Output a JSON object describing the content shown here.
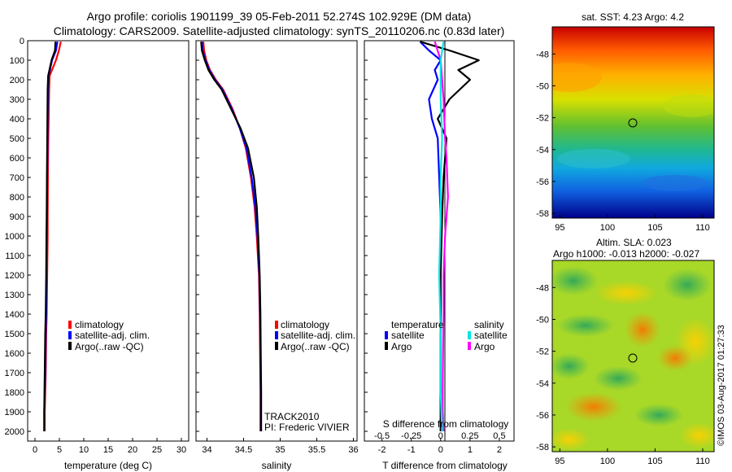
{
  "title": {
    "line1": "Argo profile: coriolis 1901199_39 05-Feb-2011 52.274S 102.929E (DM data)",
    "line2": "Climatology: CARS2009. Satellite-adjusted climatology: synTS_20110206.nc (0.83d later)"
  },
  "colors": {
    "climatology": "#ff0000",
    "satellite": "#0000ff",
    "argo": "#000000",
    "argo_salinity": "#ff00ff",
    "satellite_salinity": "#00e5e5"
  },
  "legend_profile": [
    "climatology",
    "satellite-adj. clim.",
    "Argo(..raw -QC)"
  ],
  "legend_diff": {
    "col1_title": "temperature",
    "col2_title": "salinity",
    "satellite": "satellite",
    "argo": "Argo"
  },
  "track_text": {
    "line1": "TRACK2010",
    "line2": "PI: Frederic VIVIER"
  },
  "map_sst": {
    "title": "sat. SST: 4.23 Argo: 4.2"
  },
  "map_sla": {
    "title1": "Altim. SLA: 0.023",
    "title2": "Argo h1000: -0.013 h2000: -0.027"
  },
  "watermark": "©IMOS 03-Aug-2017 01:27:33",
  "chart_data": [
    {
      "type": "line",
      "xlabel": "temperature (deg C)",
      "ylabel": "",
      "xlim": [
        -1.5,
        31.5
      ],
      "ylim": [
        2050,
        0
      ],
      "xticks": [
        0,
        5,
        10,
        15,
        20,
        25,
        30
      ],
      "yticks": [
        0,
        100,
        200,
        300,
        400,
        500,
        600,
        700,
        800,
        900,
        1000,
        1100,
        1200,
        1300,
        1400,
        1500,
        1600,
        1700,
        1800,
        1900,
        2000
      ],
      "series": [
        {
          "name": "climatology",
          "color": "#ff0000",
          "x": [
            5.3,
            4.9,
            4.3,
            3.0,
            2.9,
            2.8,
            2.7,
            2.65,
            2.6,
            2.6,
            2.5,
            2.4,
            2.3,
            2.2,
            2.1,
            2.0,
            2.0
          ],
          "y": [
            5,
            50,
            100,
            180,
            250,
            400,
            550,
            700,
            900,
            1000,
            1200,
            1400,
            1500,
            1700,
            1800,
            1900,
            2000
          ]
        },
        {
          "name": "satellite-adj. clim.",
          "color": "#0000ff",
          "x": [
            4.6,
            4.3,
            3.5,
            2.8,
            2.7,
            2.6,
            2.55,
            2.5,
            2.45,
            2.4,
            2.35,
            2.3,
            2.2,
            2.1,
            2.0,
            1.9,
            1.9
          ],
          "y": [
            5,
            50,
            100,
            180,
            250,
            400,
            550,
            700,
            900,
            1000,
            1200,
            1400,
            1500,
            1700,
            1800,
            1900,
            2000
          ]
        },
        {
          "name": "Argo(..raw -QC)",
          "color": "#000000",
          "x": [
            4.2,
            4.1,
            3.4,
            2.7,
            2.6,
            2.55,
            2.5,
            2.45,
            2.4,
            2.35,
            2.3,
            2.2,
            2.1,
            2.0,
            1.95,
            1.9,
            1.9
          ],
          "y": [
            5,
            50,
            100,
            180,
            250,
            400,
            550,
            700,
            900,
            1000,
            1200,
            1400,
            1500,
            1700,
            1800,
            1900,
            2000
          ]
        }
      ]
    },
    {
      "type": "line",
      "xlabel": "salinity",
      "ylabel": "",
      "xlim": [
        33.85,
        36.05
      ],
      "ylim": [
        2050,
        0
      ],
      "xticks": [
        34,
        34.5,
        35,
        35.5,
        36
      ],
      "xticklabels": [
        "34",
        "34.5",
        "35",
        "35.5",
        "36"
      ],
      "series": [
        {
          "name": "climatology",
          "color": "#ff0000",
          "x": [
            33.95,
            33.96,
            33.99,
            34.04,
            34.12,
            34.22,
            34.35,
            34.45,
            34.53,
            34.6,
            34.65,
            34.68,
            34.71,
            34.72,
            34.725,
            34.73,
            34.73
          ],
          "y": [
            5,
            50,
            100,
            150,
            200,
            250,
            350,
            450,
            550,
            700,
            850,
            1000,
            1200,
            1400,
            1600,
            1800,
            2000
          ]
        },
        {
          "name": "satellite-adj. clim.",
          "color": "#0000ff",
          "x": [
            33.93,
            33.94,
            33.98,
            34.03,
            34.11,
            34.21,
            34.34,
            34.45,
            34.54,
            34.61,
            34.66,
            34.69,
            34.715,
            34.725,
            34.73,
            34.735,
            34.735
          ],
          "y": [
            5,
            50,
            100,
            150,
            200,
            250,
            350,
            450,
            550,
            700,
            850,
            1000,
            1200,
            1400,
            1600,
            1800,
            2000
          ]
        },
        {
          "name": "Argo(..raw -QC)",
          "color": "#000000",
          "x": [
            33.92,
            33.93,
            33.97,
            34.02,
            34.1,
            34.2,
            34.33,
            34.46,
            34.56,
            34.64,
            34.68,
            34.7,
            34.72,
            34.73,
            34.735,
            34.74,
            34.74
          ],
          "y": [
            5,
            50,
            100,
            150,
            200,
            250,
            350,
            450,
            550,
            700,
            850,
            1000,
            1200,
            1400,
            1600,
            1800,
            2000
          ]
        }
      ]
    },
    {
      "type": "line",
      "xlabel": "T difference from climatology",
      "xlabel_top": "S difference from climatology",
      "xlim": [
        -2.6,
        2.5
      ],
      "ylim": [
        2050,
        0
      ],
      "xticks": [
        -2,
        -1,
        0,
        1,
        2
      ],
      "xticks_top": [
        -0.5,
        -0.25,
        0,
        0.25,
        0.5
      ],
      "xticklabels_top": [
        "-0.5",
        "-0.25",
        "0",
        "0.25",
        "0.5"
      ],
      "series": [
        {
          "name": "satellite (temperature)",
          "color": "#0000ff",
          "x": [
            -0.7,
            -0.4,
            0.0,
            -0.2,
            -0.1,
            -0.4,
            -0.3,
            -0.1,
            -0.05,
            0.0,
            0.0,
            0.0,
            0.0,
            0.0
          ],
          "y": [
            5,
            50,
            100,
            150,
            200,
            300,
            400,
            500,
            700,
            900,
            1200,
            1500,
            1800,
            2000
          ]
        },
        {
          "name": "Argo (temperature)",
          "color": "#000000",
          "x": [
            -0.7,
            0.3,
            1.3,
            0.6,
            1.0,
            0.3,
            -0.1,
            0.2,
            0.1,
            0.05,
            0.0,
            0.0,
            0.0,
            0.0
          ],
          "y": [
            5,
            50,
            100,
            150,
            200,
            300,
            400,
            500,
            700,
            900,
            1200,
            1500,
            1800,
            2000
          ]
        },
        {
          "name": "Argo (salinity)",
          "color": "#ff00ff",
          "x": [
            -0.2,
            0.0,
            0.1,
            0.15,
            0.2,
            0.25,
            0.2,
            0.15,
            0.1,
            0.1,
            0.08,
            0.07,
            0.07,
            0.1
          ],
          "y": [
            5,
            100,
            300,
            500,
            600,
            800,
            900,
            1000,
            1200,
            1400,
            1600,
            1800,
            1900,
            2000
          ]
        },
        {
          "name": "satellite (salinity)",
          "color": "#00e5e5",
          "x": [
            0.1,
            0.0,
            0.0,
            0.05,
            0.0,
            0.0,
            -0.05,
            0.0,
            0.0,
            0.05
          ],
          "y": [
            5,
            100,
            300,
            500,
            700,
            900,
            1200,
            1500,
            1800,
            2000
          ]
        }
      ]
    },
    {
      "type": "heatmap",
      "title": "sat. SST: 4.23 Argo: 4.2",
      "xticks": [
        95,
        100,
        105,
        110
      ],
      "yticks": [
        -48,
        -50,
        -52,
        -54,
        -56,
        -58
      ],
      "xlim": [
        94.2,
        111.2
      ],
      "ylim": [
        -58.3,
        -46.3
      ],
      "marker": {
        "x": 102.9,
        "y": -52.3
      }
    },
    {
      "type": "heatmap",
      "title": "Altim. SLA: 0.023",
      "xticks": [
        95,
        100,
        105,
        110
      ],
      "yticks": [
        -48,
        -50,
        -52,
        -54,
        -56,
        -58
      ],
      "xlim": [
        94.2,
        111.2
      ],
      "ylim": [
        -58.3,
        -46.3
      ],
      "marker": {
        "x": 102.9,
        "y": -52.3
      }
    }
  ]
}
